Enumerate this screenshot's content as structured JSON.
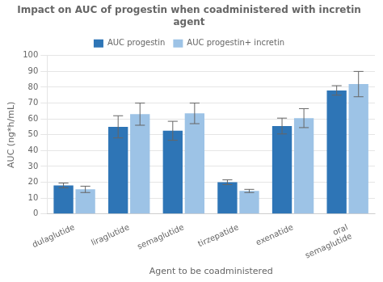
{
  "chart_data": {
    "type": "bar",
    "title": "Impact on AUC of progestin when coadministered with incretin\nagent",
    "xlabel": "Agent to be coadministered",
    "ylabel": "AUC (ng*h/mL)",
    "categories": [
      "dulaglutide",
      "liraglutide",
      "semaglutide",
      "tirzepatide",
      "exenatide",
      "oral\nsemaglutide"
    ],
    "series": [
      {
        "name": "AUC progestin",
        "color": "#2E75B6",
        "values": [
          18,
          55,
          52.5,
          20,
          55.5,
          78
        ],
        "errors": [
          1.5,
          7,
          6,
          1.5,
          5,
          3
        ]
      },
      {
        "name": "AUC progestin+ incretin",
        "color": "#9DC3E6",
        "values": [
          15.5,
          63,
          63.5,
          14.5,
          60.5,
          82
        ],
        "errors": [
          2,
          7,
          6.5,
          1,
          6,
          8
        ]
      }
    ],
    "ylim": [
      0,
      100
    ],
    "yticks": [
      0,
      10,
      20,
      30,
      40,
      50,
      60,
      70,
      80,
      90,
      100
    ],
    "grid": "y",
    "legend": "top"
  }
}
